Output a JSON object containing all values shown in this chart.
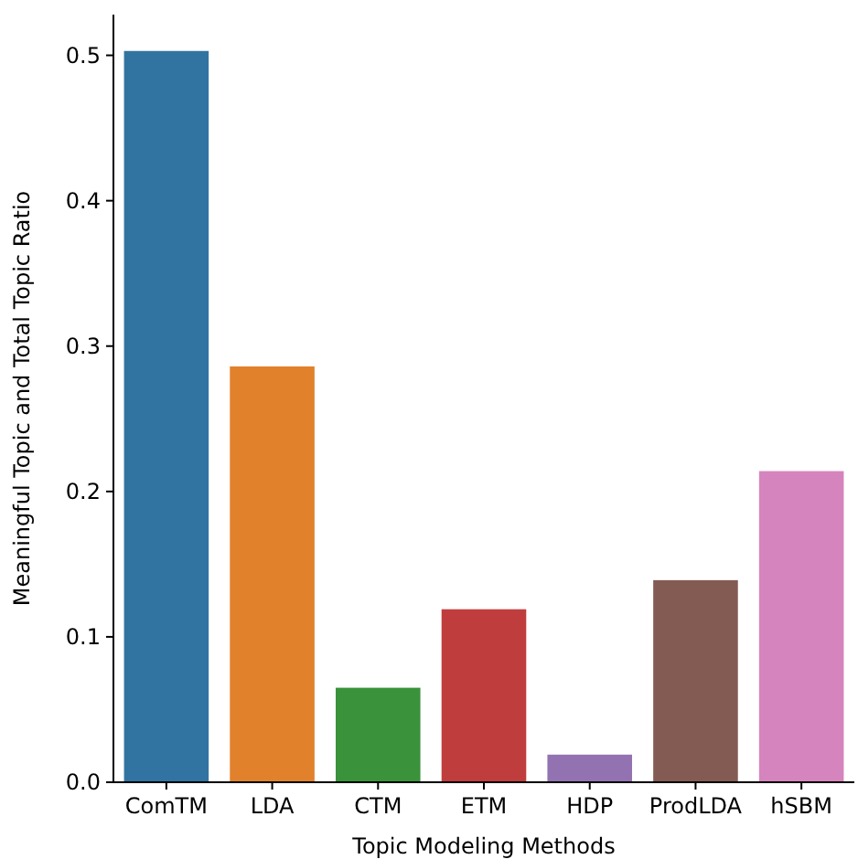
{
  "chart_data": {
    "type": "bar",
    "xlabel": "Topic Modeling Methods",
    "ylabel": "Meaningful Topic and Total Topic Ratio",
    "categories": [
      "ComTM",
      "LDA",
      "CTM",
      "ETM",
      "HDP",
      "ProdLDA",
      "hSBM"
    ],
    "values": [
      0.503,
      0.286,
      0.065,
      0.119,
      0.019,
      0.139,
      0.214
    ],
    "colors": [
      "#3274a1",
      "#e1812c",
      "#3a923a",
      "#c03d3e",
      "#9372b2",
      "#845b53",
      "#d684bd"
    ],
    "ylim": [
      0,
      0.528
    ],
    "yticks": [
      {
        "value": 0,
        "label": "0.0"
      },
      {
        "value": 0.1,
        "label": "0.1"
      },
      {
        "value": 0.2,
        "label": "0.2"
      },
      {
        "value": 0.3,
        "label": "0.3"
      },
      {
        "value": 0.4,
        "label": "0.4"
      },
      {
        "value": 0.5,
        "label": "0.5"
      }
    ],
    "grid": false
  }
}
